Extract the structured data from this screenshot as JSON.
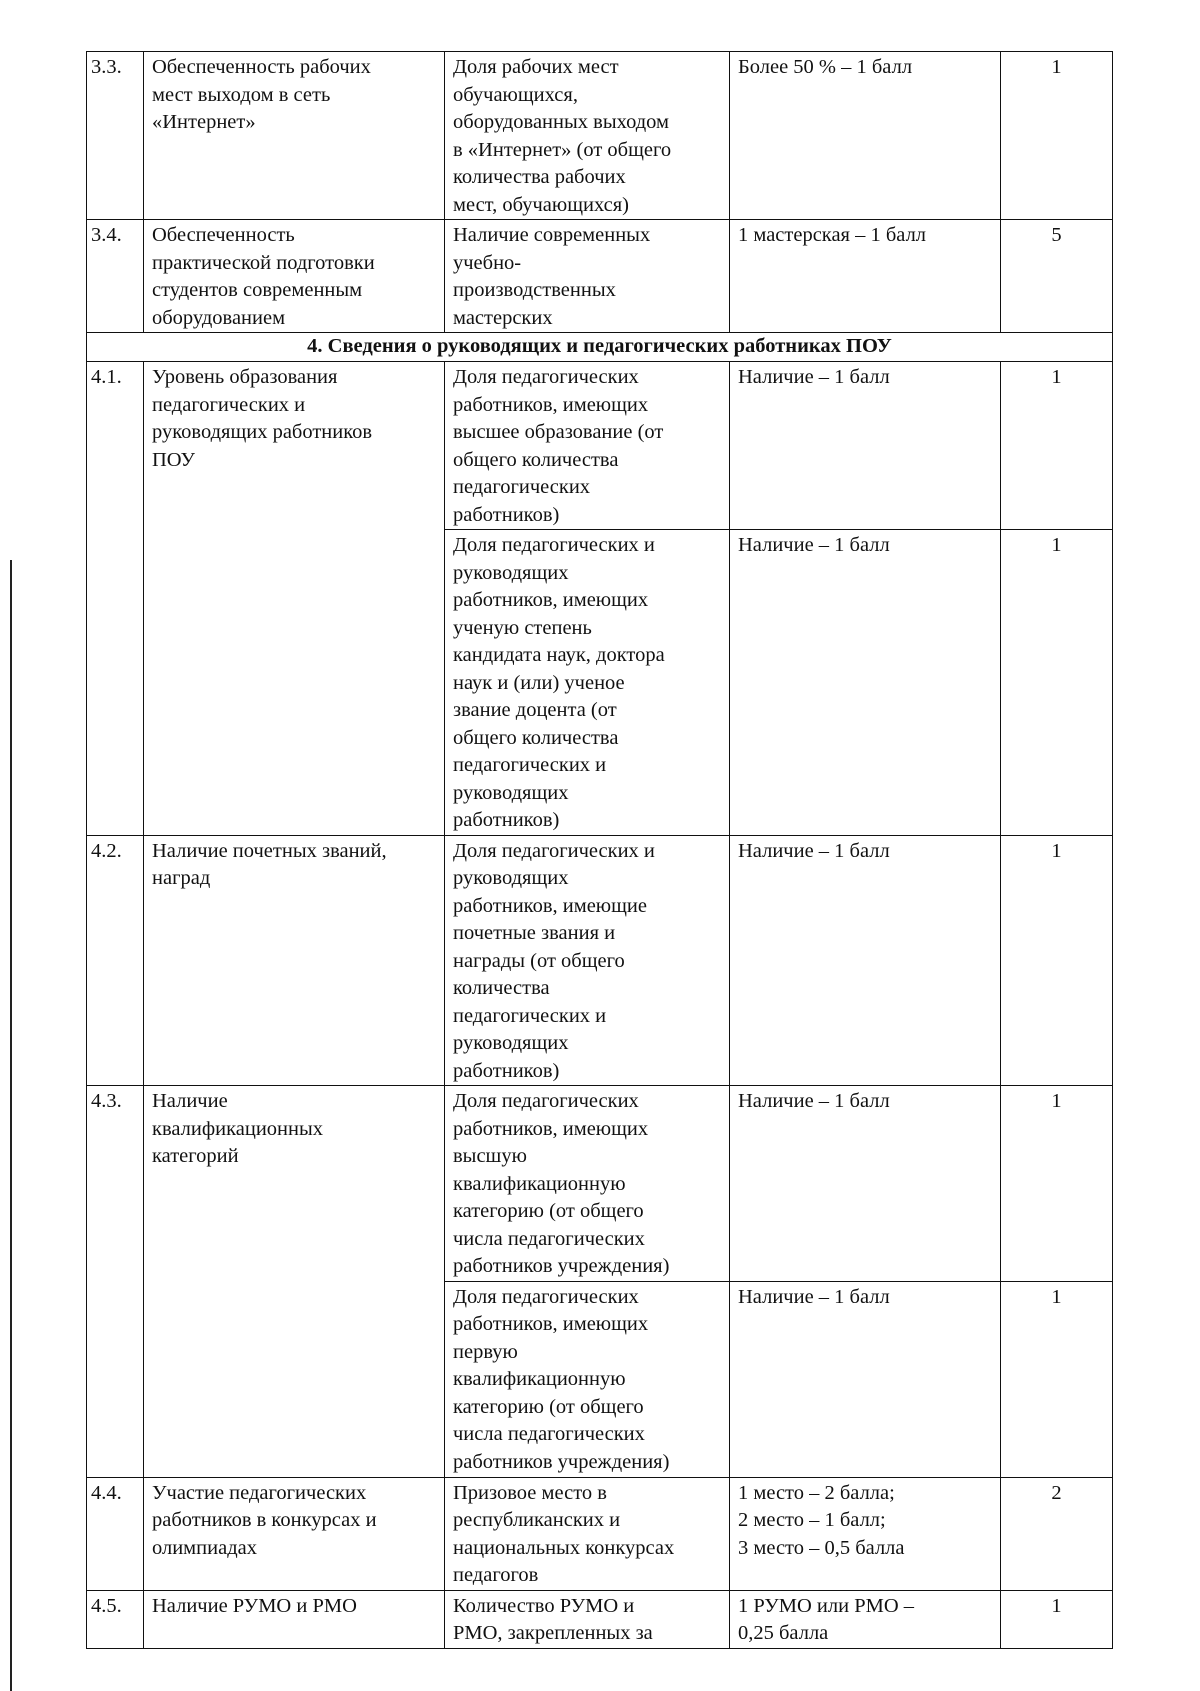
{
  "rows": [
    {
      "num": "3.3.",
      "criterion": "Обеспеченность рабочих\nмест выходом в сеть\n«Интернет»",
      "indicator": "Доля рабочих мест\nобучающихся,\nоборудованных выходом\nв «Интернет» (от общего\nколичества рабочих\nмест, обучающихся)",
      "scale": "Более 50 % – 1 балл",
      "score": "1"
    },
    {
      "num": "3.4.",
      "criterion": "Обеспеченность\nпрактической подготовки\nстудентов современным\nоборудованием",
      "indicator": "Наличие современных\nучебно-\nпроизводственных\nмастерских",
      "scale": "1 мастерская – 1 балл",
      "score": "5"
    }
  ],
  "section4": {
    "title": "4. Сведения о руководящих и педагогических работниках ПОУ",
    "r41": {
      "num": "4.1.",
      "criterion": "Уровень образования\nпедагогических и\nруководящих работников\nПОУ",
      "sub": [
        {
          "indicator": "Доля педагогических\nработников, имеющих\nвысшее образование (от\nобщего количества\nпедагогических\nработников)",
          "scale": "Наличие – 1 балл",
          "score": "1"
        },
        {
          "indicator": "Доля педагогических и\nруководящих\nработников, имеющих\nученую степень\nкандидата наук, доктора\nнаук и (или) ученое\nзвание доцента (от\nобщего количества\nпедагогических и\nруководящих\nработников)",
          "scale": "Наличие – 1 балл",
          "score": "1"
        }
      ]
    },
    "r42": {
      "num": "4.2.",
      "criterion": "Наличие почетных званий,\nнаград",
      "indicator": "Доля педагогических и\nруководящих\nработников, имеющие\nпочетные звания и\nнаграды (от общего\nколичества\nпедагогических и\nруководящих\nработников)",
      "scale": "Наличие – 1 балл",
      "score": "1"
    },
    "r43": {
      "num": "4.3.",
      "criterion": "Наличие\nквалификационных\nкатегорий",
      "sub": [
        {
          "indicator": "Доля педагогических\nработников, имеющих\nвысшую\nквалификационную\nкатегорию (от общего\nчисла педагогических\nработников учреждения)",
          "scale": "Наличие – 1 балл",
          "score": "1"
        },
        {
          "indicator": "Доля педагогических\nработников, имеющих\nпервую\nквалификационную\nкатегорию (от общего\nчисла педагогических\nработников учреждения)",
          "scale": "Наличие – 1 балл",
          "score": "1"
        }
      ]
    },
    "r44": {
      "num": "4.4.",
      "criterion": "Участие педагогических\nработников в конкурсах и\nолимпиадах",
      "indicator": "Призовое место в\nреспубликанских и\nнациональных конкурсах\nпедагогов",
      "scale": "1 место – 2 балла;\n2 место – 1 балл;\n3 место – 0,5 балла",
      "score": "2"
    },
    "r45": {
      "num": "4.5.",
      "criterion": "Наличие РУМО и РМО",
      "indicator": "Количество РУМО и\nРМО, закрепленных за",
      "scale": "1 РУМО или РМО –\n0,25 балла",
      "score": "1"
    }
  }
}
